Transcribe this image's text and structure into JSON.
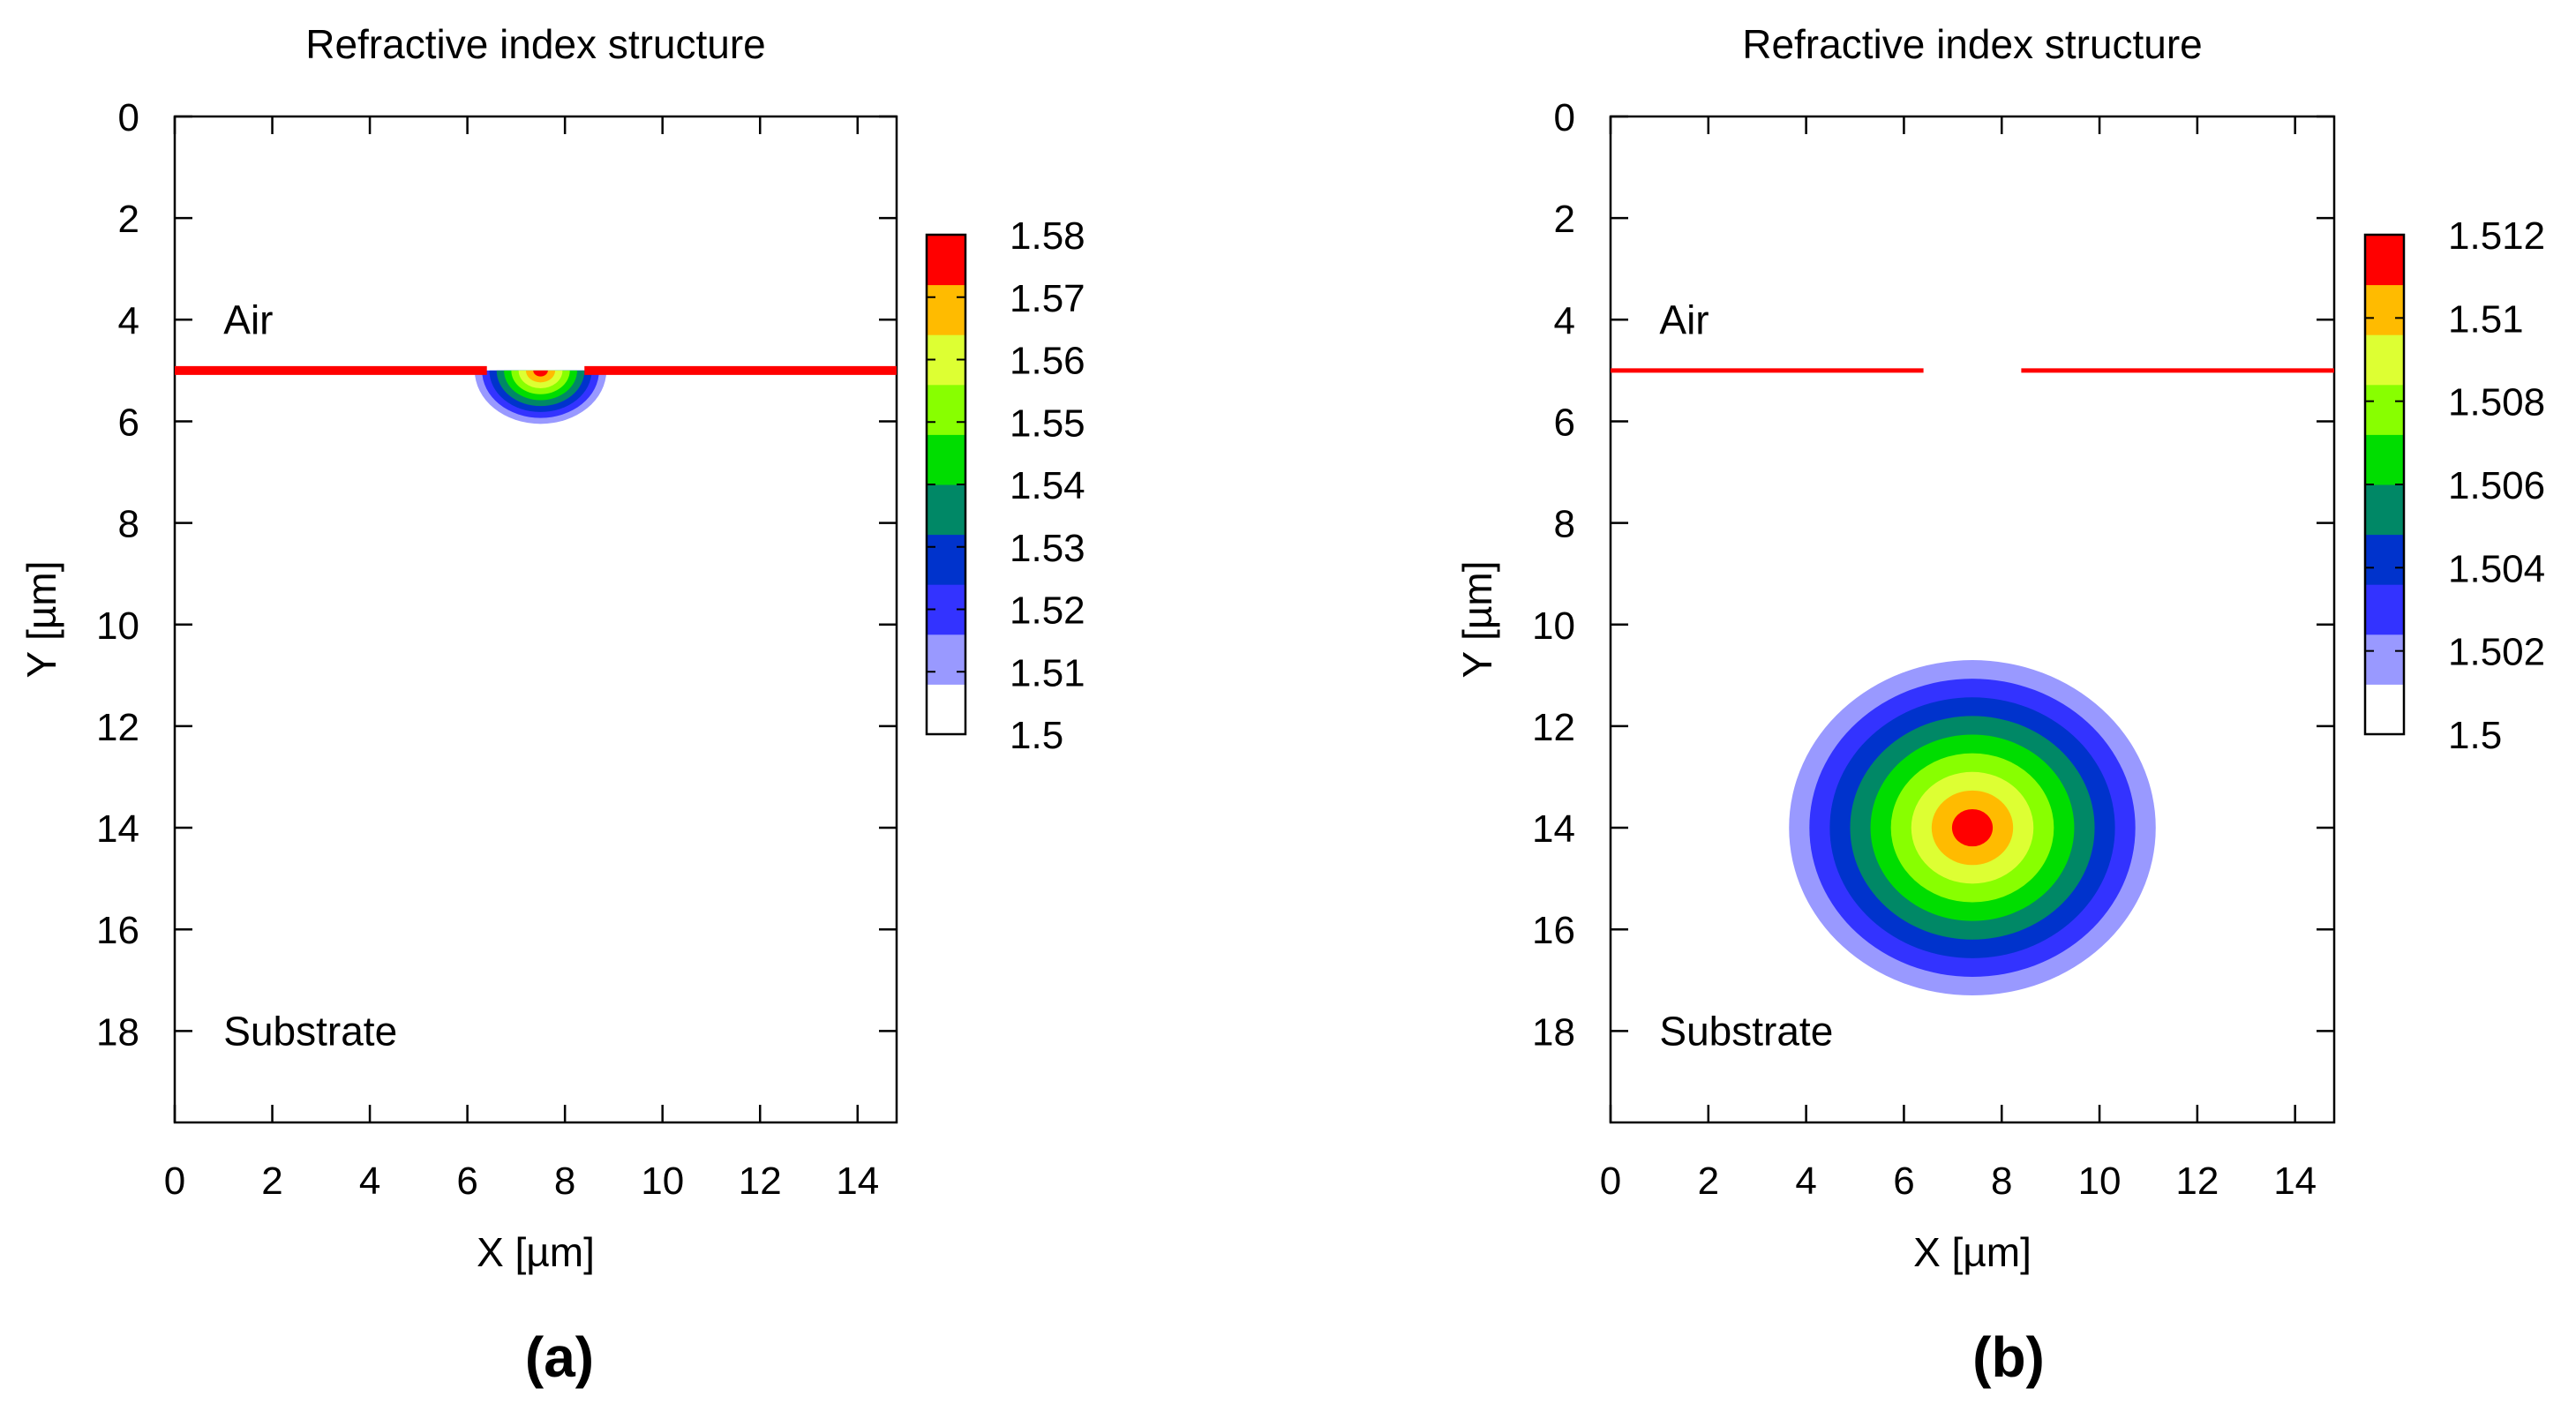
{
  "figure": {
    "panel_labels": [
      "(a)",
      "(b)"
    ]
  },
  "colors": {
    "axis": "#000000",
    "scale": [
      "#ffffff",
      "#9999ff",
      "#3333ff",
      "#0033cc",
      "#008866",
      "#00dd00",
      "#88ff00",
      "#ddff33",
      "#ffbb00",
      "#ff0000"
    ]
  },
  "chart_data": [
    {
      "type": "heatmap",
      "panel": "(a)",
      "title": "Refractive index structure",
      "xlabel": "X  [µm]",
      "ylabel": "Y [µm]",
      "xlim": [
        0,
        14.8
      ],
      "ylim": [
        0,
        19.8
      ],
      "y_inverted": true,
      "xticks": [
        0,
        2,
        4,
        6,
        8,
        10,
        12,
        14
      ],
      "yticks": [
        0,
        2,
        4,
        6,
        8,
        10,
        12,
        14,
        16,
        18
      ],
      "annotations": [
        {
          "text": "Air",
          "x": 1,
          "y": 4
        },
        {
          "text": "Substrate",
          "x": 1,
          "y": 18
        }
      ],
      "colorbar": {
        "min": 1.5,
        "max": 1.58,
        "tick_values": [
          1.5,
          1.51,
          1.52,
          1.53,
          1.54,
          1.55,
          1.56,
          1.57,
          1.58
        ],
        "tick_labels": [
          "1.5",
          "1.51",
          "1.52",
          "1.53",
          "1.54",
          "1.55",
          "1.56",
          "1.57",
          "1.58"
        ]
      },
      "surface_line": {
        "y": 5.0,
        "n": 1.58,
        "gap": [
          6.4,
          8.4
        ]
      },
      "structure": {
        "shape": "half-disk",
        "center_x": 7.5,
        "center_y": 5.0,
        "radius_x": 1.35,
        "radius_y": 1.05,
        "base_index": 1.5,
        "peak_index": 1.58
      }
    },
    {
      "type": "heatmap",
      "panel": "(b)",
      "title": "Refractive index structure",
      "xlabel": "X  [µm]",
      "ylabel": "Y [µm]",
      "xlim": [
        0,
        14.8
      ],
      "ylim": [
        0,
        19.8
      ],
      "y_inverted": true,
      "xticks": [
        0,
        2,
        4,
        6,
        8,
        10,
        12,
        14
      ],
      "yticks": [
        0,
        2,
        4,
        6,
        8,
        10,
        12,
        14,
        16,
        18
      ],
      "annotations": [
        {
          "text": "Air",
          "x": 1,
          "y": 4
        },
        {
          "text": "Substrate",
          "x": 1,
          "y": 18
        }
      ],
      "colorbar": {
        "min": 1.5,
        "max": 1.512,
        "tick_values": [
          1.5,
          1.502,
          1.504,
          1.506,
          1.508,
          1.51,
          1.512
        ],
        "tick_labels": [
          "1.5",
          "1.502",
          "1.504",
          "1.506",
          "1.508",
          "1.51",
          "1.512"
        ]
      },
      "surface_line": {
        "y": 5.0,
        "n": 1.512,
        "gap": [
          6.4,
          8.4
        ]
      },
      "structure": {
        "shape": "disk",
        "center_x": 7.4,
        "center_y": 14.0,
        "radius_x": 3.75,
        "radius_y": 3.3,
        "base_index": 1.5,
        "peak_index": 1.512
      }
    }
  ]
}
